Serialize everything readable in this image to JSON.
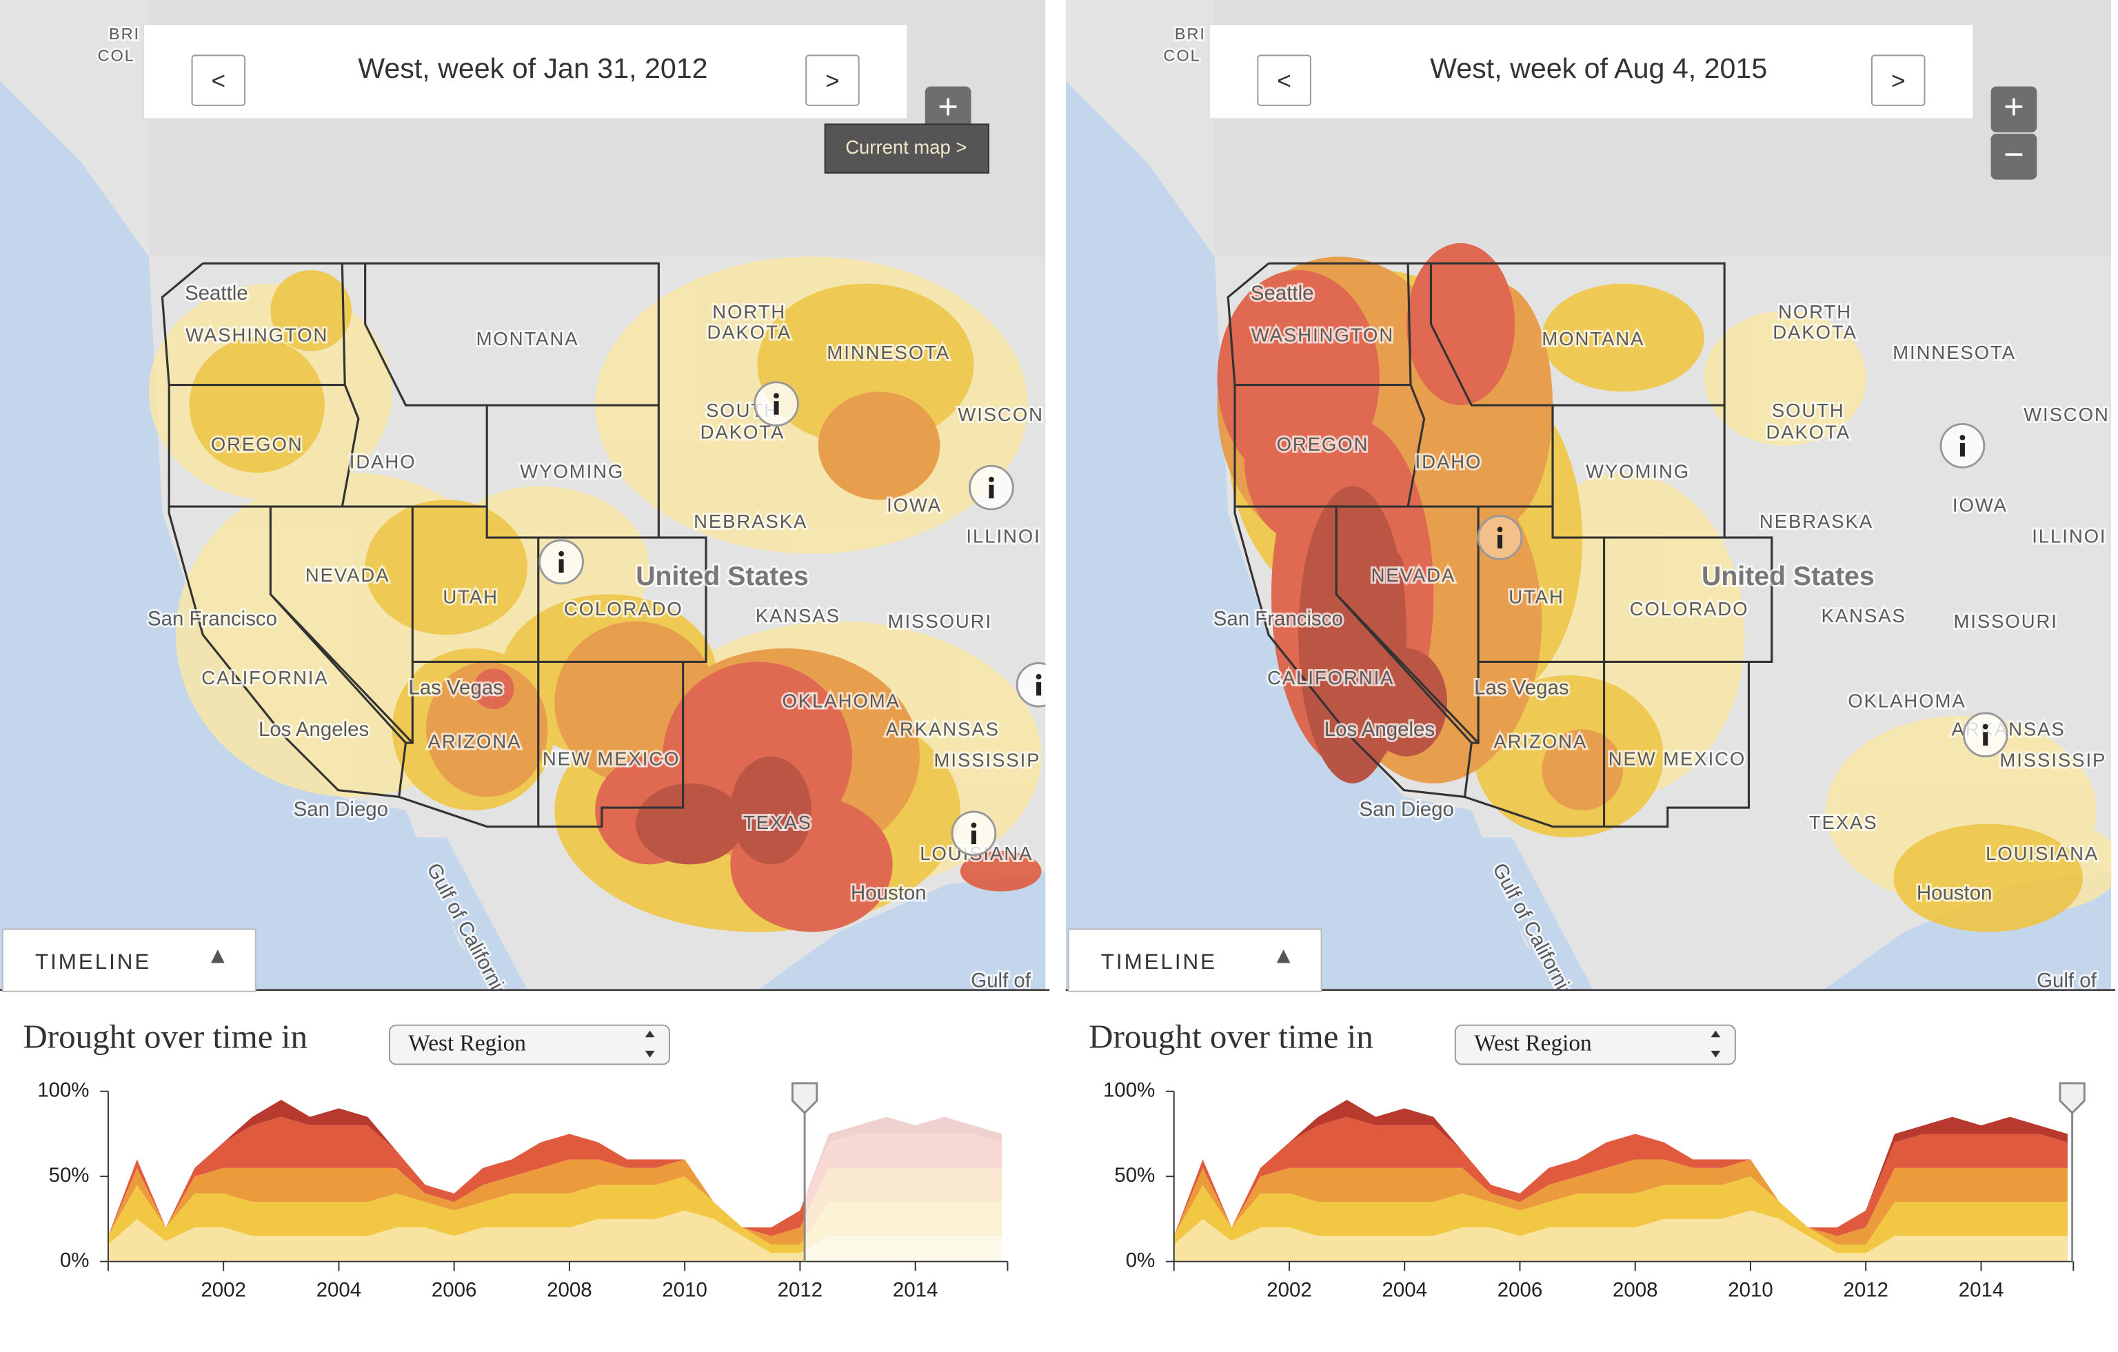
{
  "panels": [
    {
      "header": "West, week of Jan 31, 2012",
      "prev": "<",
      "next": ">",
      "zoom_in": "+",
      "tooltip": "Current map >",
      "timeline_tab": "TIMELINE",
      "heading": "Drought over time in",
      "region": "West Region",
      "marker_x": 2012.08
    },
    {
      "header": "West, week of Aug 4, 2015",
      "prev": "<",
      "next": ">",
      "zoom_in": "+",
      "zoom_out": "−",
      "timeline_tab": "TIMELINE",
      "heading": "Drought over time in",
      "region": "West Region",
      "marker_x": 2015.58
    }
  ],
  "map_labels": [
    "BRI",
    "COL",
    "Seattle",
    "WASHINGTON",
    "MONTANA",
    "NORTH",
    "DAKOTA",
    "MINNESOTA",
    "SOUTH",
    "DAKOTA",
    "WISCON",
    "OREGON",
    "IDAHO",
    "WYOMING",
    "IOWA",
    "NEBRASKA",
    "ILLINOI",
    "United States",
    "NEVADA",
    "UTAH",
    "COLORADO",
    "San Francisco",
    "KANSAS",
    "MISSOURI",
    "CALIFORNIA",
    "Las Vegas",
    "OKLAHOMA",
    "Los Angeles",
    "ARKANSAS",
    "ARIZONA",
    "NEW MEXICO",
    "MISSISSIP",
    "San Diego",
    "TEXAS",
    "LOUISIANA",
    "Houston",
    "Gulf of California",
    "Gulf of"
  ],
  "chart_data": {
    "type": "area",
    "x": [
      2000.0,
      2000.5,
      2001.0,
      2001.5,
      2002.0,
      2002.5,
      2003.0,
      2003.5,
      2004.0,
      2004.5,
      2005.0,
      2005.5,
      2006.0,
      2006.5,
      2007.0,
      2007.5,
      2008.0,
      2008.5,
      2009.0,
      2009.5,
      2010.0,
      2010.5,
      2011.0,
      2011.5,
      2012.0,
      2012.5,
      2013.0,
      2013.5,
      2014.0,
      2014.5,
      2015.0,
      2015.5
    ],
    "series": [
      {
        "color": "#f8e3a0",
        "values": [
          10,
          25,
          12,
          20,
          20,
          15,
          15,
          15,
          15,
          15,
          20,
          20,
          15,
          20,
          20,
          20,
          20,
          25,
          25,
          25,
          30,
          25,
          15,
          5,
          5,
          15,
          15,
          15,
          15,
          15,
          15,
          15
        ]
      },
      {
        "color": "#f2c744",
        "values": [
          5,
          20,
          8,
          20,
          20,
          20,
          20,
          20,
          20,
          20,
          20,
          15,
          15,
          15,
          20,
          20,
          20,
          20,
          20,
          20,
          20,
          10,
          5,
          5,
          5,
          20,
          20,
          20,
          20,
          20,
          20,
          20
        ]
      },
      {
        "color": "#eb9a3c",
        "values": [
          0,
          10,
          0,
          10,
          15,
          20,
          20,
          20,
          20,
          20,
          15,
          5,
          5,
          10,
          10,
          15,
          20,
          15,
          10,
          10,
          10,
          0,
          0,
          5,
          10,
          20,
          20,
          20,
          20,
          20,
          20,
          20
        ]
      },
      {
        "color": "#e05a3e",
        "values": [
          0,
          5,
          0,
          5,
          15,
          25,
          30,
          25,
          25,
          25,
          10,
          5,
          5,
          10,
          10,
          15,
          15,
          10,
          5,
          5,
          0,
          0,
          0,
          5,
          10,
          15,
          20,
          20,
          20,
          20,
          20,
          15
        ]
      },
      {
        "color": "#b83a2e",
        "values": [
          0,
          0,
          0,
          0,
          0,
          5,
          10,
          5,
          10,
          5,
          0,
          0,
          0,
          0,
          0,
          0,
          0,
          0,
          0,
          0,
          0,
          0,
          0,
          0,
          0,
          5,
          5,
          10,
          5,
          10,
          5,
          5
        ]
      }
    ],
    "xlim": [
      2000,
      2015.6
    ],
    "xticks": [
      2002,
      2004,
      2006,
      2008,
      2010,
      2012,
      2014
    ],
    "ylim": [
      0,
      100
    ],
    "yticks": [
      {
        "value": 0,
        "label": "0%"
      },
      {
        "value": 50,
        "label": "50%"
      },
      {
        "value": 100,
        "label": "100%"
      }
    ]
  }
}
